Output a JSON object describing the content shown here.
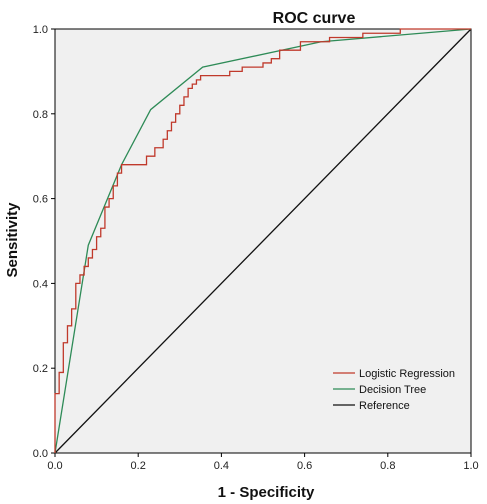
{
  "chart_data": {
    "type": "line",
    "title": "ROC curve",
    "xlabel": "1 - Specificity",
    "ylabel": "Sensitivity",
    "xlim": [
      0.0,
      1.0
    ],
    "ylim": [
      0.0,
      1.0
    ],
    "x_ticks": [
      "0.0",
      "0.2",
      "0.4",
      "0.6",
      "0.8",
      "1.0"
    ],
    "y_ticks": [
      "0.0",
      "0.2",
      "0.4",
      "0.6",
      "0.8",
      "1.0"
    ],
    "grid": false,
    "legend_position": "bottom-right",
    "background_color": "#f0f0f0",
    "series": [
      {
        "name": "Logistic Regression",
        "color": "#c0392b",
        "x": [
          0.0,
          0.0,
          0.01,
          0.01,
          0.02,
          0.02,
          0.03,
          0.03,
          0.04,
          0.04,
          0.05,
          0.05,
          0.06,
          0.06,
          0.07,
          0.07,
          0.08,
          0.08,
          0.09,
          0.09,
          0.1,
          0.1,
          0.11,
          0.11,
          0.12,
          0.12,
          0.13,
          0.13,
          0.14,
          0.14,
          0.15,
          0.15,
          0.16,
          0.16,
          0.22,
          0.22,
          0.24,
          0.24,
          0.26,
          0.26,
          0.27,
          0.27,
          0.28,
          0.28,
          0.29,
          0.29,
          0.3,
          0.3,
          0.31,
          0.31,
          0.32,
          0.32,
          0.33,
          0.33,
          0.34,
          0.34,
          0.35,
          0.35,
          0.42,
          0.42,
          0.45,
          0.45,
          0.5,
          0.5,
          0.52,
          0.52,
          0.54,
          0.54,
          0.59,
          0.59,
          0.66,
          0.66,
          0.74,
          0.74,
          0.83,
          0.83,
          0.84,
          0.84,
          1.0
        ],
        "y": [
          0.0,
          0.14,
          0.14,
          0.19,
          0.19,
          0.26,
          0.26,
          0.3,
          0.3,
          0.34,
          0.34,
          0.4,
          0.4,
          0.42,
          0.42,
          0.44,
          0.44,
          0.46,
          0.46,
          0.48,
          0.48,
          0.51,
          0.51,
          0.53,
          0.53,
          0.58,
          0.58,
          0.6,
          0.6,
          0.63,
          0.63,
          0.66,
          0.66,
          0.68,
          0.68,
          0.7,
          0.7,
          0.72,
          0.72,
          0.74,
          0.74,
          0.76,
          0.76,
          0.78,
          0.78,
          0.8,
          0.8,
          0.82,
          0.82,
          0.84,
          0.84,
          0.86,
          0.86,
          0.87,
          0.87,
          0.88,
          0.88,
          0.89,
          0.89,
          0.9,
          0.9,
          0.91,
          0.91,
          0.92,
          0.92,
          0.93,
          0.93,
          0.95,
          0.95,
          0.97,
          0.97,
          0.98,
          0.98,
          0.99,
          0.99,
          1.0,
          1.0,
          1.0,
          1.0
        ]
      },
      {
        "name": "Decision Tree",
        "color": "#2e8b57",
        "x": [
          0.0,
          0.08,
          0.16,
          0.23,
          0.355,
          0.64,
          1.0
        ],
        "y": [
          0.0,
          0.49,
          0.68,
          0.81,
          0.91,
          0.97,
          1.0
        ]
      },
      {
        "name": "Reference",
        "color": "#111111",
        "x": [
          0.0,
          1.0
        ],
        "y": [
          0.0,
          1.0
        ]
      }
    ]
  }
}
